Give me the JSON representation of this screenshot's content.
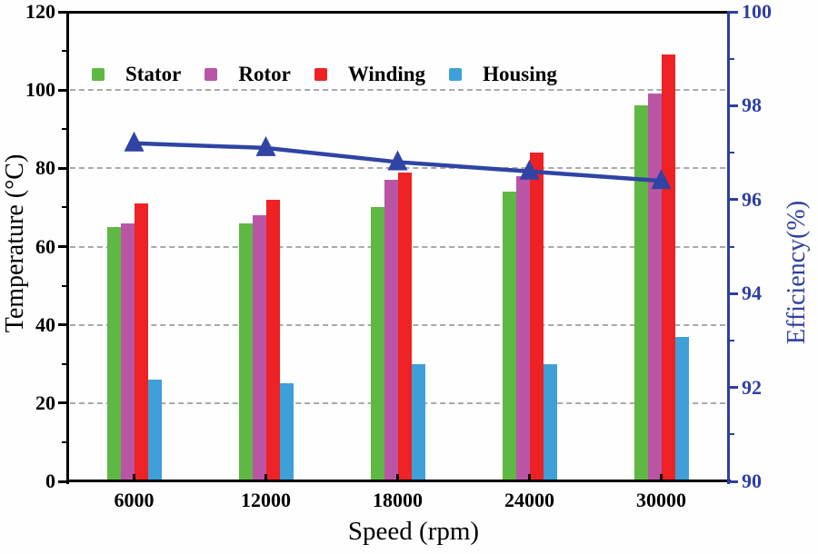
{
  "chart_data": {
    "type": "bar+line",
    "categories": [
      6000,
      12000,
      18000,
      24000,
      30000
    ],
    "bar_series": [
      {
        "name": "Stator",
        "color": "#5eb843",
        "values": [
          65,
          66,
          70,
          74,
          96
        ]
      },
      {
        "name": "Rotor",
        "color": "#ba55a5",
        "values": [
          66,
          68,
          77,
          78,
          99
        ]
      },
      {
        "name": "Winding",
        "color": "#ee2125",
        "values": [
          71,
          72,
          79,
          84,
          109
        ]
      },
      {
        "name": "Housing",
        "color": "#3f9fd8",
        "values": [
          26,
          25,
          30,
          30,
          37
        ]
      }
    ],
    "line_series": {
      "name": "Efficiency",
      "color": "#2f44a4",
      "marker": "triangle-up",
      "values": [
        97.2,
        97.1,
        96.8,
        96.6,
        96.4
      ]
    },
    "axes": {
      "x": {
        "label": "Speed (rpm)",
        "tick_labels": [
          "6000",
          "12000",
          "18000",
          "24000",
          "30000"
        ]
      },
      "left": {
        "label": "Temperature (°C)",
        "min": 0,
        "max": 120,
        "major_step": 20,
        "minor_step": 10,
        "tick_labels": [
          "0",
          "20",
          "40",
          "60",
          "80",
          "100",
          "120"
        ],
        "color": "#000000"
      },
      "right": {
        "label": "Efficiency(%)",
        "min": 90,
        "max": 100,
        "major_step": 2,
        "minor_step": 1,
        "tick_labels": [
          "90",
          "92",
          "94",
          "96",
          "98",
          "100"
        ],
        "color": "#2e3fa0"
      }
    },
    "grid": {
      "show": true,
      "style": "dashed",
      "color": "#9b9b9b",
      "at_left_values": [
        20,
        40,
        60,
        80,
        100
      ]
    },
    "legend": {
      "position": "top-inside",
      "items": [
        "Stator",
        "Rotor",
        "Winding",
        "Housing"
      ]
    }
  }
}
